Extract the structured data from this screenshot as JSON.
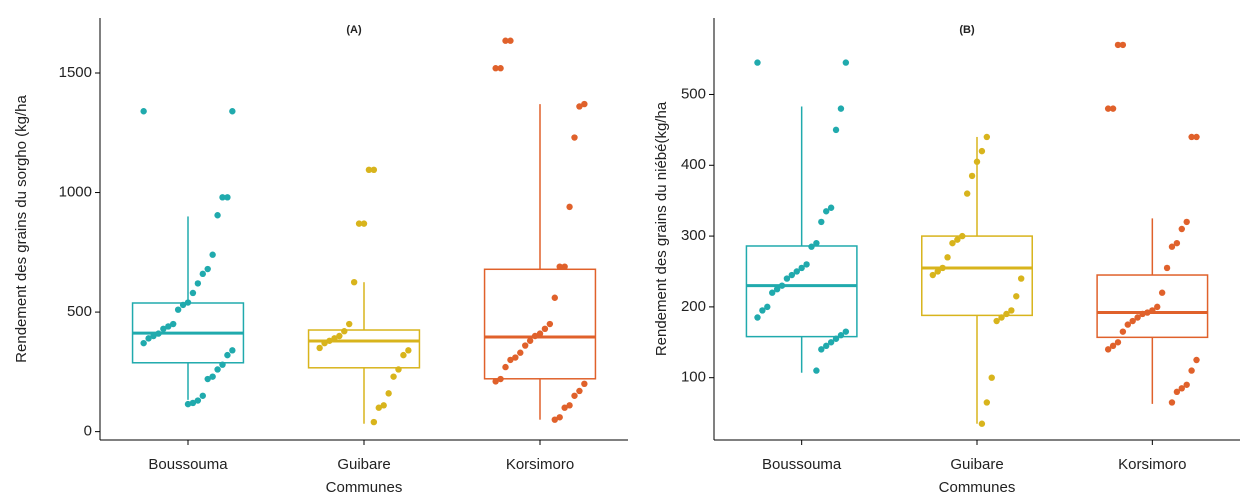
{
  "chart_data": [
    {
      "type": "box",
      "title": "(A)",
      "ylabel": "Rendement des grains du sorgho (kg/ha",
      "xlabel": "Communes",
      "categories": [
        "Boussouma",
        "Guibare",
        "Korsimoro"
      ],
      "colors": [
        "#20aaad",
        "#d8b41c",
        "#e0612b"
      ],
      "boxes": [
        {
          "whislo": 133,
          "q1": 288,
          "med": 412,
          "q3": 538,
          "whishi": 900
        },
        {
          "whislo": 33,
          "q1": 267,
          "med": 379,
          "q3": 425,
          "whishi": 625
        },
        {
          "whislo": 50,
          "q1": 221,
          "med": 396,
          "q3": 679,
          "whishi": 1370
        }
      ],
      "points": [
        [
          1340,
          1340,
          980,
          980,
          905,
          740,
          680,
          660,
          620,
          580,
          540,
          530,
          510,
          450,
          440,
          430,
          410,
          400,
          390,
          370,
          340,
          320,
          280,
          260,
          230,
          220,
          150,
          130,
          120,
          115
        ],
        [
          1095,
          1095,
          870,
          870,
          625,
          450,
          420,
          400,
          390,
          380,
          370,
          350,
          340,
          320,
          260,
          230,
          160,
          110,
          100,
          40
        ],
        [
          1635,
          1635,
          1520,
          1520,
          1370,
          1360,
          1230,
          940,
          690,
          690,
          560,
          450,
          430,
          410,
          400,
          380,
          360,
          330,
          310,
          300,
          270,
          220,
          210,
          200,
          170,
          150,
          110,
          100,
          60,
          50
        ]
      ],
      "ylim": [
        -35,
        1730
      ],
      "yticks": [
        0,
        500,
        1000,
        1500
      ]
    },
    {
      "type": "box",
      "title": "(B)",
      "ylabel": "Rendement des grains du  niébé(kg/ha",
      "xlabel": "Communes",
      "categories": [
        "Boussouma",
        "Guibare",
        "Korsimoro"
      ],
      "colors": [
        "#20aaad",
        "#d8b41c",
        "#e0612b"
      ],
      "boxes": [
        {
          "whislo": 107,
          "q1": 158,
          "med": 230,
          "q3": 286,
          "whishi": 483
        },
        {
          "whislo": 35,
          "q1": 188,
          "med": 255,
          "q3": 300,
          "whishi": 440
        },
        {
          "whislo": 63,
          "q1": 157,
          "med": 192,
          "q3": 245,
          "whishi": 325
        }
      ],
      "points": [
        [
          545,
          545,
          480,
          450,
          340,
          335,
          320,
          290,
          285,
          260,
          255,
          250,
          245,
          240,
          230,
          225,
          220,
          200,
          195,
          185,
          165,
          160,
          155,
          150,
          145,
          140,
          110
        ],
        [
          440,
          420,
          405,
          385,
          360,
          300,
          295,
          290,
          270,
          255,
          250,
          245,
          240,
          215,
          195,
          190,
          185,
          180,
          100,
          65,
          35
        ],
        [
          570,
          570,
          480,
          480,
          440,
          440,
          320,
          310,
          290,
          285,
          255,
          220,
          200,
          195,
          192,
          190,
          185,
          180,
          175,
          165,
          150,
          145,
          140,
          125,
          110,
          90,
          85,
          80,
          65
        ]
      ],
      "ylim": [
        12,
        608
      ],
      "yticks": [
        100,
        200,
        300,
        400,
        500
      ]
    }
  ]
}
